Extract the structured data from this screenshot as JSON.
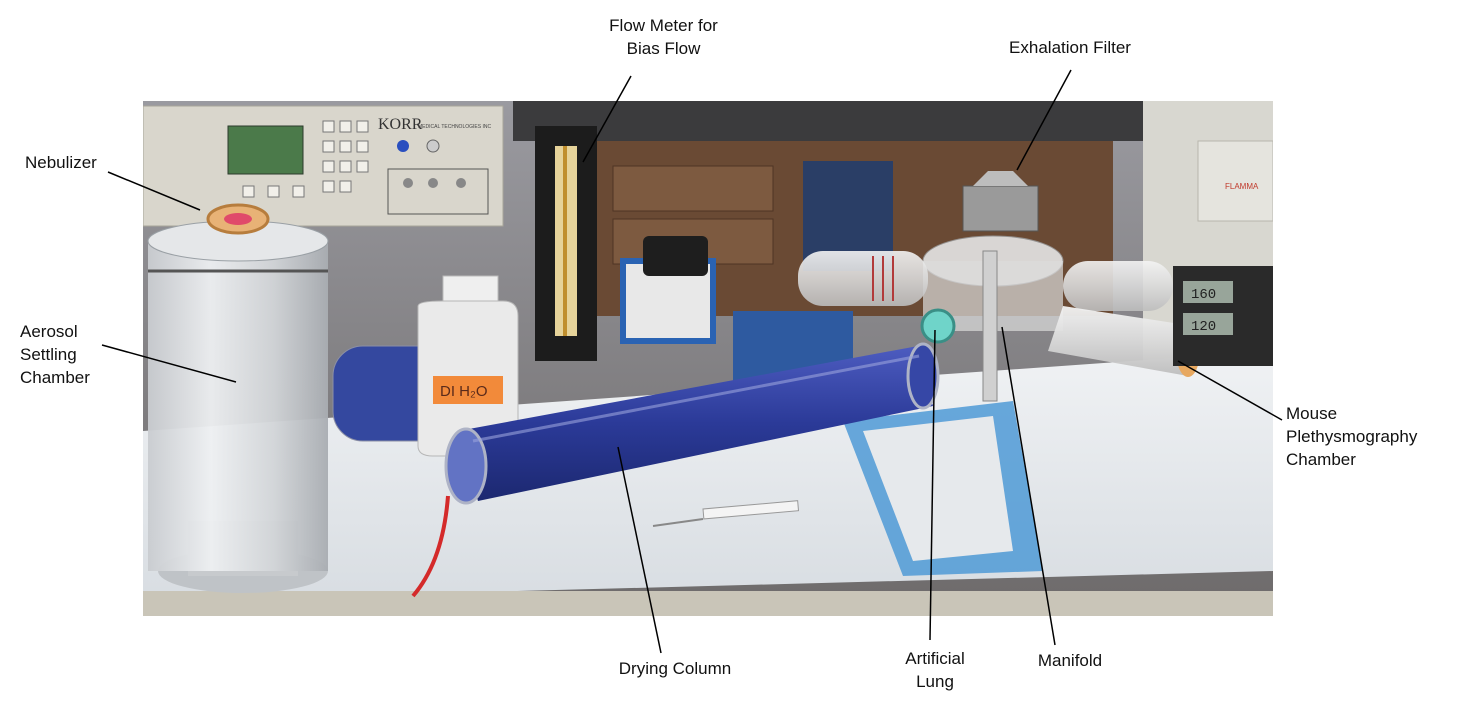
{
  "callouts": {
    "flow_meter": "Flow Meter for\nBias Flow",
    "exhalation_filter": "Exhalation Filter",
    "nebulizer": "Nebulizer",
    "aerosol_chamber": "Aerosol\nSettling\nChamber",
    "mouse_chamber": "Mouse\nPlethysmography\nChamber",
    "drying_column": "Drying Column",
    "artificial_lung": "Artificial\nLung",
    "manifold": "Manifold"
  },
  "photo_text": {
    "korr_brand": "KORR",
    "korr_sub": "MEDICAL TECHNOLOGIES INC",
    "bottle_label": "DI H₂O",
    "display_1": "160",
    "display_2": "120",
    "flamma": "FLAMMA"
  },
  "colors": {
    "bench_paper": "#e8ecef",
    "blue_pad": "#4f9ad6",
    "desiccant": "#2e3f9c",
    "cabinet": "#6a4a34",
    "instrument": "#d9d6cc"
  }
}
